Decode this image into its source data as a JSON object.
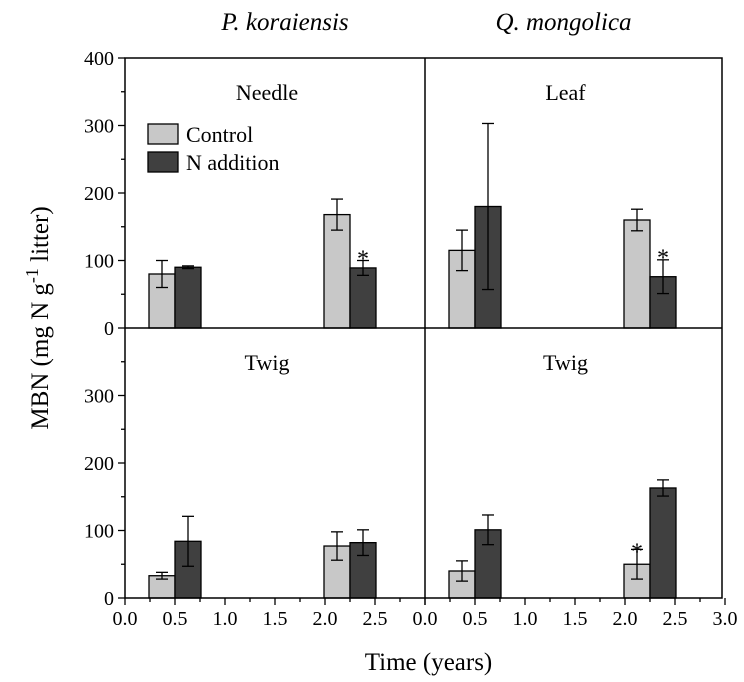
{
  "chart_data": {
    "type": "bar",
    "xlabel": "Time (years)",
    "ylabel_main": "MBN (mg N g",
    "ylabel_sup": "-1",
    "ylabel_tail": " litter)",
    "xlim": [
      0.0,
      3.0
    ],
    "ylim": [
      0,
      400
    ],
    "x_ticks": [
      "0.0",
      "0.5",
      "1.0",
      "1.5",
      "2.0",
      "2.5",
      "3.0"
    ],
    "x_ticks_left": [
      "0.0",
      "0.5",
      "1.0",
      "1.5",
      "2.0",
      "2.5"
    ],
    "y_ticks_top": [
      "400",
      "300",
      "200",
      "100",
      "0"
    ],
    "y_ticks_bottom": [
      "300",
      "200",
      "100",
      "0"
    ],
    "columns": [
      "P. koraiensis",
      "Q. mongolica"
    ],
    "legend": [
      {
        "name": "Control",
        "color": "#c8c8c8"
      },
      {
        "name": "N addition",
        "color": "#404040"
      }
    ],
    "significance_marker": "*",
    "panels": [
      {
        "label": "Needle",
        "row": 0,
        "col": 0,
        "series": [
          {
            "name": "Control",
            "x": [
              0.37,
              2.12
            ],
            "values": [
              80,
              168
            ],
            "errors": [
              20,
              23
            ]
          },
          {
            "name": "N addition",
            "x": [
              0.63,
              2.38
            ],
            "values": [
              90,
              89
            ],
            "errors": [
              2,
              11
            ]
          }
        ],
        "markers": [
          {
            "x": 2.38,
            "y": 112
          }
        ]
      },
      {
        "label": "Leaf",
        "row": 0,
        "col": 1,
        "series": [
          {
            "name": "Control",
            "x": [
              0.37,
              2.12
            ],
            "values": [
              115,
              160
            ],
            "errors": [
              30,
              16
            ]
          },
          {
            "name": "N addition",
            "x": [
              0.63,
              2.38
            ],
            "values": [
              180,
              76
            ],
            "errors": [
              123,
              25
            ]
          }
        ],
        "markers": [
          {
            "x": 2.38,
            "y": 113
          }
        ]
      },
      {
        "label": "Twig",
        "row": 1,
        "col": 0,
        "series": [
          {
            "name": "Control",
            "x": [
              0.37,
              2.12
            ],
            "values": [
              33,
              77
            ],
            "errors": [
              5,
              21
            ]
          },
          {
            "name": "N addition",
            "x": [
              0.63,
              2.38
            ],
            "values": [
              84,
              82
            ],
            "errors": [
              37,
              19
            ]
          }
        ],
        "markers": []
      },
      {
        "label": "Twig",
        "row": 1,
        "col": 1,
        "series": [
          {
            "name": "Control",
            "x": [
              0.37,
              2.12
            ],
            "values": [
              40,
              50
            ],
            "errors": [
              15,
              22
            ]
          },
          {
            "name": "N addition",
            "x": [
              0.63,
              2.38
            ],
            "values": [
              101,
              163
            ],
            "errors": [
              22,
              12
            ]
          }
        ],
        "markers": [
          {
            "x": 2.12,
            "y": 78
          }
        ]
      }
    ]
  }
}
